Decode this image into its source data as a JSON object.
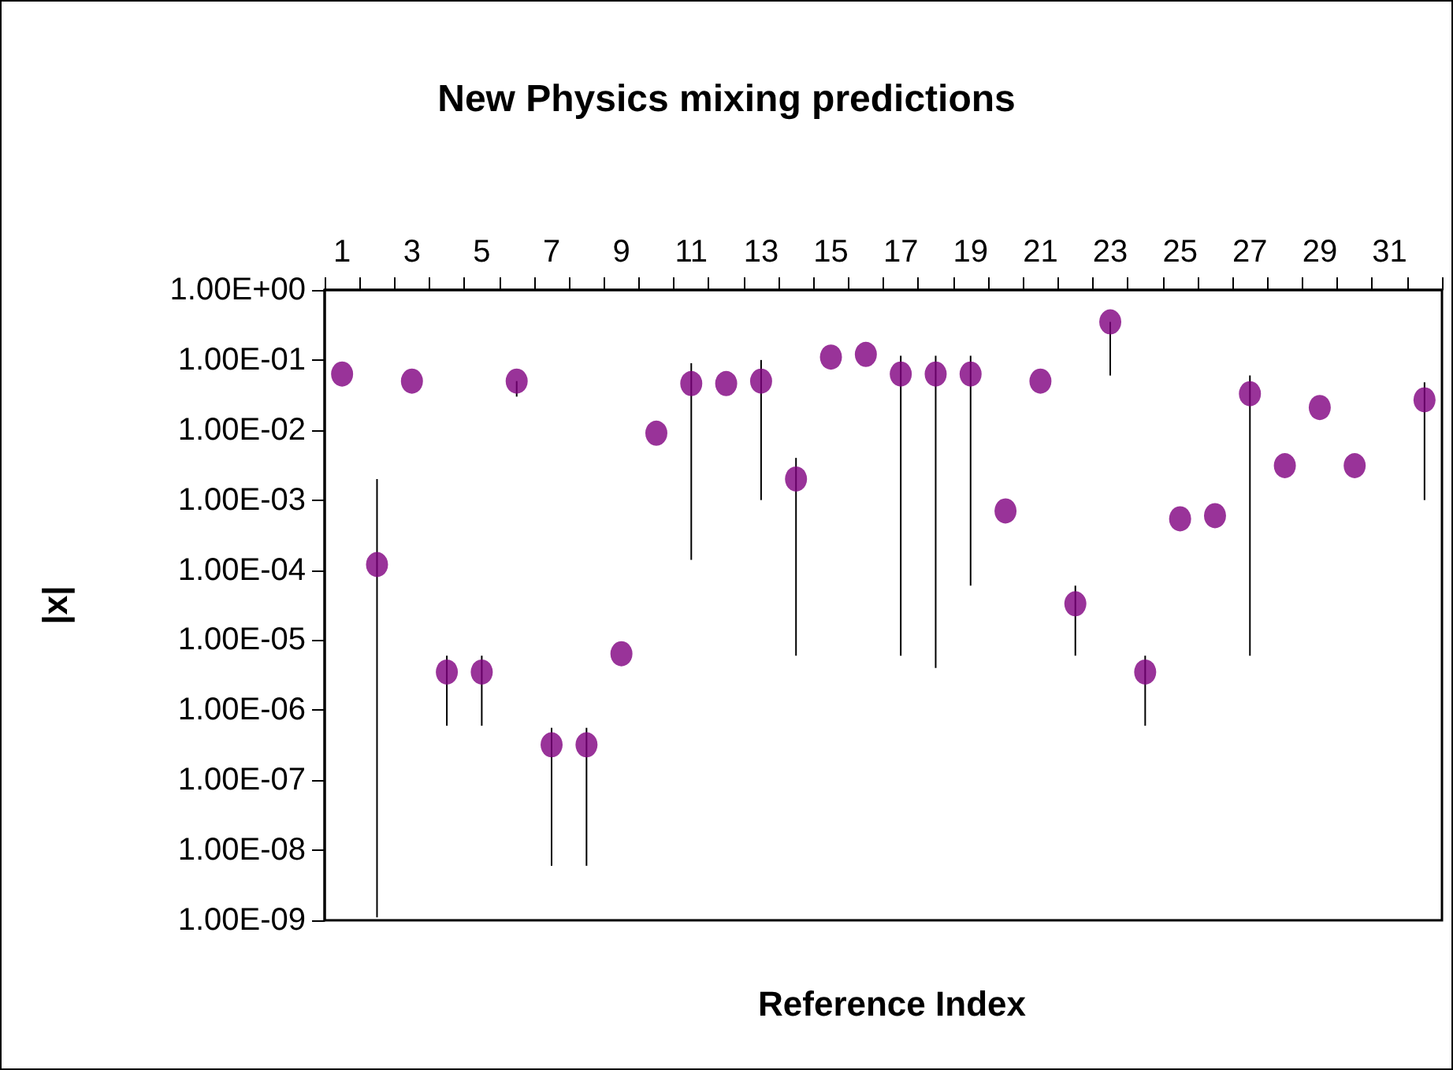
{
  "chart_data": {
    "type": "scatter",
    "title": "New Physics mixing predictions",
    "xlabel": "Reference Index",
    "ylabel": "|x|",
    "x": [
      1,
      2,
      3,
      4,
      5,
      6,
      7,
      8,
      9,
      10,
      11,
      12,
      13,
      14,
      15,
      16,
      17,
      18,
      19,
      20,
      21,
      22,
      23,
      24,
      25,
      26,
      27,
      28,
      29,
      30,
      31,
      32
    ],
    "xlim": [
      0.5,
      32.5
    ],
    "xticks": [
      1,
      3,
      5,
      7,
      9,
      11,
      13,
      15,
      17,
      19,
      21,
      23,
      25,
      27,
      29,
      31,
      {
        "value": 0.5,
        "label": null
      },
      {
        "value": 1.5,
        "label": null
      },
      {
        "value": 2.5,
        "label": null
      },
      {
        "value": 3.5,
        "label": null
      },
      {
        "value": 4.5,
        "label": null
      },
      {
        "value": 5.5,
        "label": null
      },
      {
        "value": 6.5,
        "label": null
      },
      {
        "value": 7.5,
        "label": null
      },
      {
        "value": 8.5,
        "label": null
      },
      {
        "value": 9.5,
        "label": null
      },
      {
        "value": 10.5,
        "label": null
      },
      {
        "value": 11.5,
        "label": null
      },
      {
        "value": 12.5,
        "label": null
      },
      {
        "value": 13.5,
        "label": null
      },
      {
        "value": 14.5,
        "label": null
      },
      {
        "value": 15.5,
        "label": null
      },
      {
        "value": 16.5,
        "label": null
      },
      {
        "value": 17.5,
        "label": null
      },
      {
        "value": 18.5,
        "label": null
      },
      {
        "value": 19.5,
        "label": null
      },
      {
        "value": 20.5,
        "label": null
      },
      {
        "value": 21.5,
        "label": null
      },
      {
        "value": 22.5,
        "label": null
      },
      {
        "value": 23.5,
        "label": null
      },
      {
        "value": 24.5,
        "label": null
      },
      {
        "value": 25.5,
        "label": null
      },
      {
        "value": 26.5,
        "label": null
      },
      {
        "value": 27.5,
        "label": null
      },
      {
        "value": 28.5,
        "label": null
      },
      {
        "value": 29.5,
        "label": null
      },
      {
        "value": 30.5,
        "label": null
      },
      {
        "value": 31.5,
        "label": null
      },
      {
        "value": 32.5,
        "label": null
      }
    ],
    "series": [
      {
        "color": "#800080",
        "values": [
          0.063,
          0.00012,
          0.05,
          3.5e-06,
          3.5e-06,
          0.05,
          3.2e-07,
          3.2e-07,
          6.4e-06,
          0.009,
          0.046,
          0.046,
          0.05,
          0.002,
          0.11,
          0.12,
          0.063,
          0.063,
          0.063,
          0.0007,
          0.05,
          3.3e-05,
          0.35,
          3.5e-06,
          0.00054,
          0.0006,
          0.033,
          0.0031,
          0.021,
          0.0031,
          null,
          0.027
        ],
        "errors": [
          null,
          [
            1.1e-09,
            0.002
          ],
          null,
          [
            6e-07,
            6e-06
          ],
          [
            6e-07,
            6e-06
          ],
          [
            0.03,
            0.05
          ],
          [
            6e-09,
            5.6e-07
          ],
          [
            6e-09,
            5.6e-07
          ],
          null,
          null,
          [
            0.00014,
            0.09
          ],
          null,
          [
            0.001,
            0.1
          ],
          [
            6e-06,
            0.004
          ],
          null,
          null,
          [
            6e-06,
            0.115
          ],
          [
            4e-06,
            0.115
          ],
          [
            6e-05,
            0.115
          ],
          null,
          null,
          [
            6e-06,
            6e-05
          ],
          [
            0.06,
            0.35
          ],
          [
            6e-07,
            6e-06
          ],
          null,
          null,
          [
            6e-06,
            0.06
          ],
          null,
          null,
          null,
          null,
          [
            0.001,
            0.048
          ]
        ]
      }
    ],
    "log": "y",
    "ylim": [
      1e-09,
      1
    ],
    "yticks": [
      {
        "value": 1,
        "label": "1.00E+00"
      },
      {
        "value": 0.1,
        "label": "1.00E-01"
      },
      {
        "value": 0.01,
        "label": "1.00E-02"
      },
      {
        "value": 0.001,
        "label": "1.00E-03"
      },
      {
        "value": 0.0001,
        "label": "1.00E-04"
      },
      {
        "value": 1e-05,
        "label": "1.00E-05"
      },
      {
        "value": 1e-06,
        "label": "1.00E-06"
      },
      {
        "value": 1e-07,
        "label": "1.00E-07"
      },
      {
        "value": 1e-08,
        "label": "1.00E-08"
      },
      {
        "value": 1e-09,
        "label": "1.00E-09"
      }
    ],
    "marker": "circle"
  }
}
